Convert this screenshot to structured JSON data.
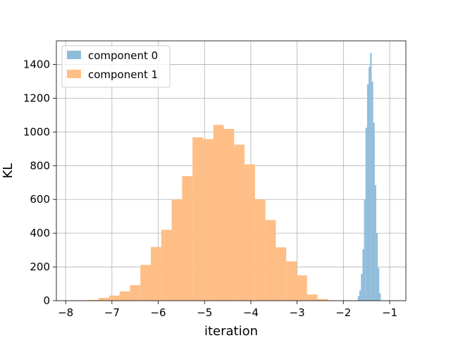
{
  "chart_data": {
    "type": "histogram",
    "title": "",
    "xlabel": "iteration",
    "ylabel": "KL",
    "xlim": [
      -8.2,
      -0.65
    ],
    "ylim": [
      0,
      1540
    ],
    "xticks": [
      -8,
      -7,
      -6,
      -5,
      -4,
      -3,
      -2,
      -1
    ],
    "xtick_labels": [
      "−8",
      "−7",
      "−6",
      "−5",
      "−4",
      "−3",
      "−2",
      "−1"
    ],
    "yticks": [
      0,
      200,
      400,
      600,
      800,
      1000,
      1200,
      1400
    ],
    "ytick_labels": [
      "0",
      "200",
      "400",
      "600",
      "800",
      "1000",
      "1200",
      "1400"
    ],
    "grid": true,
    "legend_position": "top-left",
    "series": [
      {
        "name": "component 1",
        "color": "#ffbe86",
        "bin_edges": [
          -7.96,
          -7.735,
          -7.51,
          -7.285,
          -7.06,
          -6.835,
          -6.61,
          -6.385,
          -6.16,
          -5.935,
          -5.71,
          -5.485,
          -5.26,
          -5.035,
          -4.81,
          -4.585,
          -4.36,
          -4.135,
          -3.91,
          -3.685,
          -3.46,
          -3.235,
          -3.01,
          -2.785,
          -2.56,
          -2.335
        ],
        "values": [
          1,
          2,
          5,
          16,
          30,
          55,
          92,
          212,
          318,
          420,
          600,
          738,
          968,
          958,
          1042,
          1018,
          925,
          808,
          600,
          478,
          316,
          233,
          150,
          37,
          10
        ]
      },
      {
        "name": "component 0",
        "color": "#8fbcdb",
        "bin_edges": [
          -1.72,
          -1.687,
          -1.654,
          -1.621,
          -1.588,
          -1.555,
          -1.522,
          -1.489,
          -1.456,
          -1.423,
          -1.39,
          -1.357,
          -1.324,
          -1.291,
          -1.258,
          -1.225,
          -1.192
        ],
        "values": [
          4,
          28,
          62,
          158,
          305,
          598,
          1025,
          1282,
          1385,
          1468,
          1298,
          1055,
          685,
          400,
          195,
          45
        ]
      }
    ]
  }
}
